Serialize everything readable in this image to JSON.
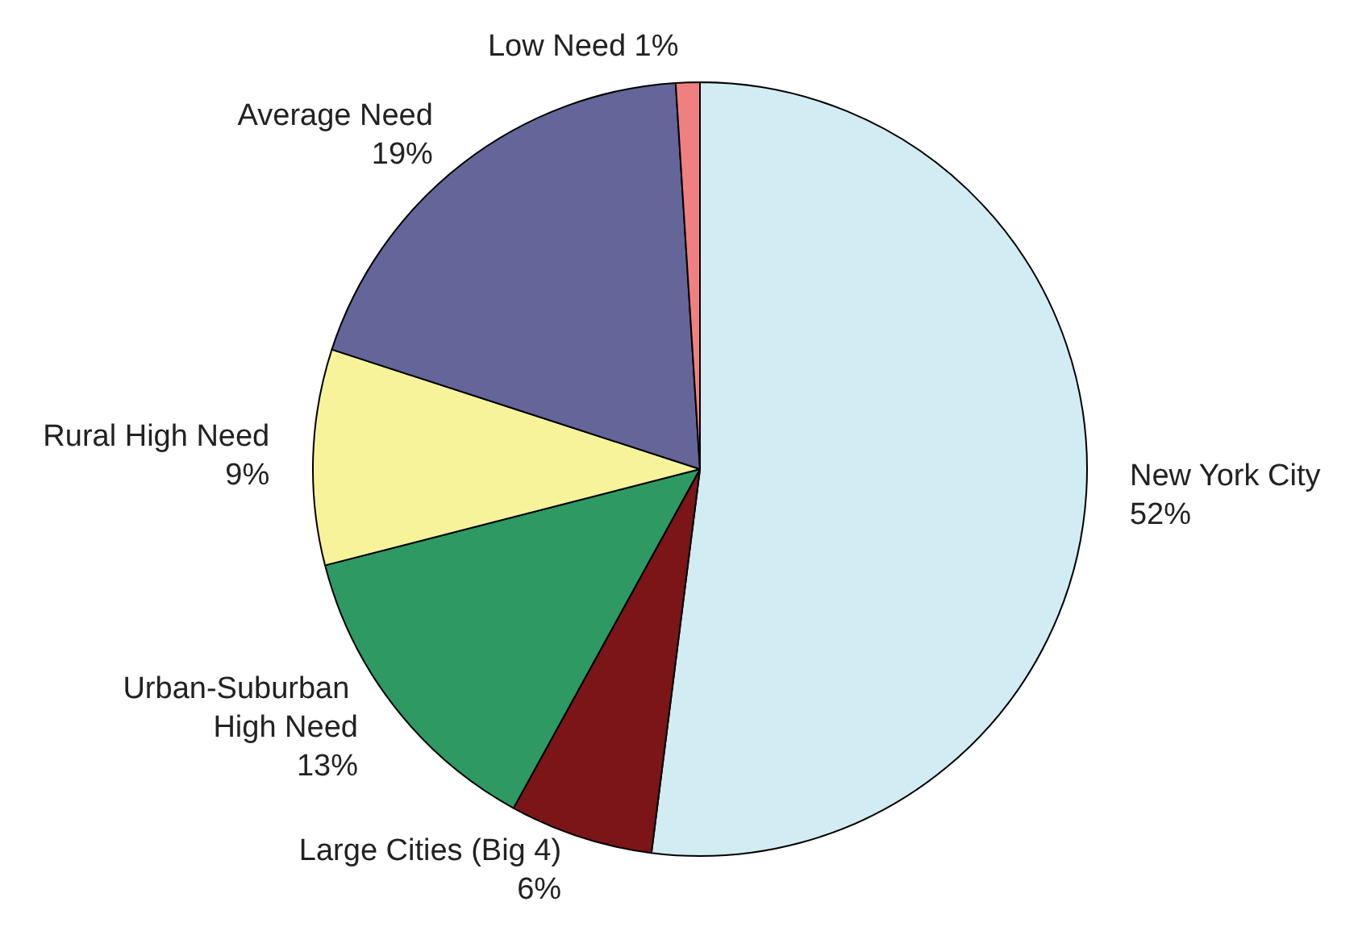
{
  "chart_data": {
    "type": "pie",
    "categories": [
      "New York City",
      "Large Cities (Big 4)",
      "Urban-Suburban High Need",
      "Rural High Need",
      "Average Need",
      "Low Need"
    ],
    "values": [
      52,
      6,
      13,
      9,
      19,
      1
    ],
    "colors": [
      "#d1ecf2",
      "#7b1518",
      "#2e9963",
      "#f6f39a",
      "#646598",
      "#f08080"
    ],
    "value_labels": [
      "52%",
      "6%",
      "13%",
      "9%",
      "19%",
      "1%"
    ]
  }
}
